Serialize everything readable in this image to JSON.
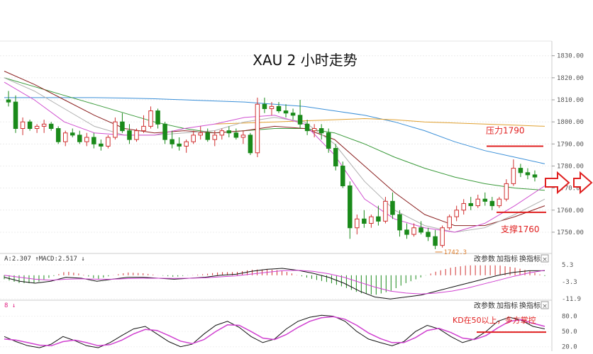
{
  "chart_data": {
    "type": "candlestick",
    "title": "XAU 2 小时走势",
    "main": {
      "yticks": [
        "1830.00",
        "1820.00",
        "1810.00",
        "1800.00",
        "1790.00",
        "1780.00",
        "1770.00",
        "1760.00",
        "1750.00"
      ],
      "ylim": [
        1741,
        1836
      ],
      "candles": [
        {
          "o": 1810,
          "h": 1814,
          "l": 1807,
          "c": 1809
        },
        {
          "o": 1809,
          "h": 1812,
          "l": 1795,
          "c": 1797
        },
        {
          "o": 1797,
          "h": 1802,
          "l": 1794,
          "c": 1800
        },
        {
          "o": 1800,
          "h": 1801,
          "l": 1796,
          "c": 1797
        },
        {
          "o": 1797,
          "h": 1799,
          "l": 1795,
          "c": 1798
        },
        {
          "o": 1798,
          "h": 1801,
          "l": 1795,
          "c": 1799
        },
        {
          "o": 1799,
          "h": 1800,
          "l": 1796,
          "c": 1797
        },
        {
          "o": 1797,
          "h": 1798,
          "l": 1790,
          "c": 1791
        },
        {
          "o": 1791,
          "h": 1796,
          "l": 1789,
          "c": 1795
        },
        {
          "o": 1795,
          "h": 1797,
          "l": 1793,
          "c": 1794
        },
        {
          "o": 1794,
          "h": 1796,
          "l": 1790,
          "c": 1791
        },
        {
          "o": 1791,
          "h": 1795,
          "l": 1789,
          "c": 1793
        },
        {
          "o": 1793,
          "h": 1795,
          "l": 1788,
          "c": 1790
        },
        {
          "o": 1790,
          "h": 1792,
          "l": 1787,
          "c": 1789
        },
        {
          "o": 1789,
          "h": 1794,
          "l": 1788,
          "c": 1793
        },
        {
          "o": 1793,
          "h": 1802,
          "l": 1792,
          "c": 1800
        },
        {
          "o": 1800,
          "h": 1804,
          "l": 1795,
          "c": 1796
        },
        {
          "o": 1796,
          "h": 1799,
          "l": 1790,
          "c": 1792
        },
        {
          "o": 1792,
          "h": 1797,
          "l": 1791,
          "c": 1796
        },
        {
          "o": 1796,
          "h": 1803,
          "l": 1795,
          "c": 1798
        },
        {
          "o": 1798,
          "h": 1807,
          "l": 1797,
          "c": 1805
        },
        {
          "o": 1805,
          "h": 1806,
          "l": 1797,
          "c": 1799
        },
        {
          "o": 1799,
          "h": 1800,
          "l": 1790,
          "c": 1792
        },
        {
          "o": 1792,
          "h": 1796,
          "l": 1788,
          "c": 1790
        },
        {
          "o": 1790,
          "h": 1793,
          "l": 1787,
          "c": 1789
        },
        {
          "o": 1789,
          "h": 1792,
          "l": 1786,
          "c": 1791
        },
        {
          "o": 1791,
          "h": 1796,
          "l": 1790,
          "c": 1794
        },
        {
          "o": 1794,
          "h": 1798,
          "l": 1792,
          "c": 1795
        },
        {
          "o": 1795,
          "h": 1797,
          "l": 1791,
          "c": 1792
        },
        {
          "o": 1792,
          "h": 1796,
          "l": 1789,
          "c": 1794
        },
        {
          "o": 1794,
          "h": 1797,
          "l": 1792,
          "c": 1796
        },
        {
          "o": 1796,
          "h": 1798,
          "l": 1793,
          "c": 1795
        },
        {
          "o": 1795,
          "h": 1797,
          "l": 1792,
          "c": 1793
        },
        {
          "o": 1793,
          "h": 1796,
          "l": 1790,
          "c": 1794
        },
        {
          "o": 1794,
          "h": 1795,
          "l": 1785,
          "c": 1786
        },
        {
          "o": 1786,
          "h": 1811,
          "l": 1784,
          "c": 1808
        },
        {
          "o": 1808,
          "h": 1811,
          "l": 1804,
          "c": 1806
        },
        {
          "o": 1806,
          "h": 1809,
          "l": 1803,
          "c": 1807
        },
        {
          "o": 1807,
          "h": 1809,
          "l": 1804,
          "c": 1805
        },
        {
          "o": 1805,
          "h": 1808,
          "l": 1802,
          "c": 1804
        },
        {
          "o": 1804,
          "h": 1806,
          "l": 1801,
          "c": 1803
        },
        {
          "o": 1803,
          "h": 1810,
          "l": 1797,
          "c": 1799
        },
        {
          "o": 1799,
          "h": 1801,
          "l": 1794,
          "c": 1796
        },
        {
          "o": 1796,
          "h": 1799,
          "l": 1793,
          "c": 1797
        },
        {
          "o": 1797,
          "h": 1799,
          "l": 1792,
          "c": 1795
        },
        {
          "o": 1795,
          "h": 1797,
          "l": 1786,
          "c": 1788
        },
        {
          "o": 1788,
          "h": 1790,
          "l": 1778,
          "c": 1780
        },
        {
          "o": 1780,
          "h": 1782,
          "l": 1770,
          "c": 1771
        },
        {
          "o": 1771,
          "h": 1773,
          "l": 1747,
          "c": 1752
        },
        {
          "o": 1752,
          "h": 1758,
          "l": 1749,
          "c": 1756
        },
        {
          "o": 1756,
          "h": 1760,
          "l": 1752,
          "c": 1754
        },
        {
          "o": 1754,
          "h": 1758,
          "l": 1752,
          "c": 1757
        },
        {
          "o": 1757,
          "h": 1762,
          "l": 1753,
          "c": 1755
        },
        {
          "o": 1755,
          "h": 1766,
          "l": 1754,
          "c": 1764
        },
        {
          "o": 1764,
          "h": 1768,
          "l": 1756,
          "c": 1758
        },
        {
          "o": 1758,
          "h": 1760,
          "l": 1748,
          "c": 1751
        },
        {
          "o": 1751,
          "h": 1754,
          "l": 1747,
          "c": 1749
        },
        {
          "o": 1749,
          "h": 1754,
          "l": 1748,
          "c": 1752
        },
        {
          "o": 1752,
          "h": 1755,
          "l": 1749,
          "c": 1750
        },
        {
          "o": 1750,
          "h": 1752,
          "l": 1746,
          "c": 1748
        },
        {
          "o": 1748,
          "h": 1751,
          "l": 1742.3,
          "c": 1744
        },
        {
          "o": 1744,
          "h": 1753,
          "l": 1743,
          "c": 1752
        },
        {
          "o": 1752,
          "h": 1758,
          "l": 1751,
          "c": 1757
        },
        {
          "o": 1757,
          "h": 1762,
          "l": 1755,
          "c": 1760
        },
        {
          "o": 1760,
          "h": 1765,
          "l": 1758,
          "c": 1763
        },
        {
          "o": 1763,
          "h": 1766,
          "l": 1760,
          "c": 1762
        },
        {
          "o": 1762,
          "h": 1767,
          "l": 1761,
          "c": 1765
        },
        {
          "o": 1765,
          "h": 1768,
          "l": 1762,
          "c": 1764
        },
        {
          "o": 1764,
          "h": 1766,
          "l": 1760,
          "c": 1762
        },
        {
          "o": 1762,
          "h": 1766,
          "l": 1761,
          "c": 1765
        },
        {
          "o": 1765,
          "h": 1774,
          "l": 1764,
          "c": 1772
        },
        {
          "o": 1772,
          "h": 1783,
          "l": 1771,
          "c": 1779
        },
        {
          "o": 1779,
          "h": 1781,
          "l": 1775,
          "c": 1777
        },
        {
          "o": 1777,
          "h": 1779,
          "l": 1774,
          "c": 1776
        },
        {
          "o": 1776,
          "h": 1778,
          "l": 1773,
          "c": 1775
        }
      ],
      "moving_averages": [
        {
          "color": "#3a8fd8",
          "values": [
            1811,
            1811,
            1811,
            1811,
            1810.8,
            1810.5,
            1810,
            1809.5,
            1809,
            1808,
            1807,
            1805,
            1803,
            1800,
            1796,
            1791,
            1787,
            1784,
            1781
          ]
        },
        {
          "color": "#e0a030",
          "values": [
            null,
            null,
            null,
            null,
            null,
            null,
            null,
            1799,
            1799.5,
            1800,
            1800.5,
            1801,
            1801.5,
            1801,
            1800,
            1799.5,
            1799,
            1798.5,
            1798
          ]
        },
        {
          "color": "#3a9a3a",
          "values": [
            1820,
            1816,
            1812,
            1808,
            1804,
            1800,
            1797,
            1795,
            1796,
            1797,
            1797,
            1795,
            1790,
            1784,
            1779,
            1775,
            1772,
            1770,
            1769
          ]
        },
        {
          "color": "#8b2020",
          "values": [
            1823,
            1817,
            1810,
            1803,
            1797,
            1795,
            1796,
            1795,
            1796,
            1798,
            1797,
            1792,
            1780,
            1768,
            1758,
            1753,
            1753,
            1757,
            1762
          ]
        },
        {
          "color": "#b0b0b0",
          "values": [
            1820,
            1814,
            1806,
            1798,
            1794,
            1794,
            1795,
            1796,
            1800,
            1802,
            1800,
            1790,
            1773,
            1760,
            1753,
            1750,
            1752,
            1758,
            1765
          ]
        },
        {
          "color": "#d050d0",
          "values": [
            1818,
            1810,
            1800,
            1795,
            1794,
            1794,
            1797,
            1799,
            1802,
            1803,
            1799,
            1785,
            1765,
            1756,
            1752,
            1750,
            1754,
            1762,
            1771
          ]
        }
      ],
      "annotations": {
        "resistance": {
          "label": "压力1790",
          "level": 1789
        },
        "support": {
          "label": "支撑1760",
          "level": 1759
        },
        "low": {
          "label": "1742.3",
          "value": 1742.3
        }
      }
    },
    "macd": {
      "label": "A:2.307 ↑MACD:2.517 ↓",
      "yticks": [
        "5.3",
        "-3.3",
        "-11.9"
      ],
      "ylim": [
        -11.9,
        5.3
      ],
      "dif": [
        -1,
        -3,
        -4,
        -3,
        -1,
        -1.5,
        -3,
        -2,
        -1,
        -1,
        -1.5,
        -2,
        -1.5,
        -1,
        0,
        0.5,
        2,
        3,
        3.5,
        2.5,
        1,
        -1,
        -4,
        -8,
        -11,
        -12,
        -11,
        -10,
        -8,
        -6,
        -4,
        -2,
        0,
        1.5,
        2.3,
        2.3
      ],
      "dea": [
        0,
        -1,
        -2,
        -2.5,
        -2,
        -1.8,
        -2,
        -2,
        -1.7,
        -1.5,
        -1.5,
        -1.6,
        -1.5,
        -1.3,
        -0.8,
        -0.3,
        0.6,
        1.5,
        2.3,
        2.5,
        2,
        0.8,
        -1,
        -3.5,
        -6,
        -8,
        -9,
        -9.5,
        -9,
        -8,
        -6.5,
        -4.5,
        -2.5,
        -0.5,
        1.2,
        2.5
      ]
    },
    "kd": {
      "label": "8 ↓",
      "yticks": [
        "80.0",
        "50.0",
        "20.0"
      ],
      "ylim": [
        14,
        92
      ],
      "k": [
        40,
        30,
        22,
        18,
        25,
        40,
        32,
        22,
        18,
        28,
        42,
        55,
        60,
        45,
        30,
        20,
        25,
        45,
        62,
        70,
        58,
        40,
        28,
        35,
        55,
        70,
        78,
        82,
        80,
        70,
        50,
        35,
        28,
        22,
        30,
        50,
        62,
        55,
        40,
        28,
        35,
        50,
        70,
        78,
        72,
        60,
        55
      ],
      "d": [
        35,
        33,
        28,
        23,
        22,
        30,
        33,
        28,
        22,
        24,
        33,
        45,
        54,
        52,
        42,
        31,
        26,
        34,
        50,
        63,
        62,
        50,
        37,
        34,
        44,
        58,
        70,
        77,
        79,
        74,
        62,
        47,
        36,
        28,
        28,
        38,
        52,
        56,
        48,
        37,
        34,
        42,
        57,
        70,
        73,
        66,
        60
      ],
      "annotation": {
        "label": "KD在50以上，多方掌控",
        "level": 50
      }
    }
  },
  "toolbar": {
    "params": "改参数",
    "add": "加指标",
    "switch": "换指标",
    "close": "×"
  }
}
